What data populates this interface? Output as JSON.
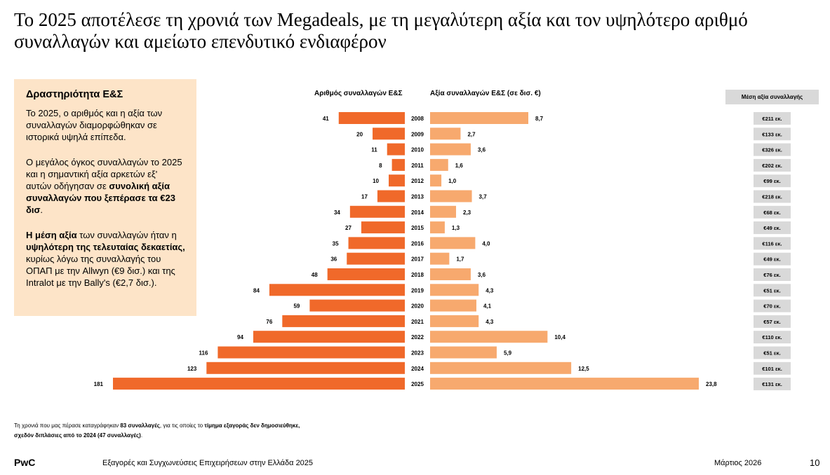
{
  "title": "Το 2025 αποτέλεσε τη χρονιά των Megadeals, με τη μεγαλύτερη αξία και τον υψηλότερο αριθμό συναλλαγών και αμείωτο επενδυτικό ενδιαφέρον",
  "sidebox": {
    "heading": "Δραστηριότητα Ε&Σ",
    "p1": "Το 2025, ο αριθμός και η αξία των συναλλαγών διαμορφώθηκαν σε ιστορικά υψηλά επίπεδα.",
    "p2_a": "Ο μεγάλος όγκος συναλλαγών το 2025 και η σημαντική αξία αρκετών εξ' αυτών οδήγησαν σε ",
    "p2_b": "συνολική αξία συναλλαγών που ξεπέρασε τα €23 δισ",
    "p2_c": ".",
    "p3_a": "Η μέση αξία",
    "p3_b": " των συναλλαγών ήταν η ",
    "p3_c": "υψηλότερη της τελευταίας δεκαετίας,",
    "p3_d": " κυρίως λόγω της συναλλαγής του ΟΠΑΠ με την Allwyn (€9 δισ.) και της Intralot με την Bally's (€2,7 δισ.)."
  },
  "footnote": {
    "a": "Τη χρονιά που μας πέρασε καταγράφηκαν ",
    "b": "83 συναλλαγές",
    "c": ", για τις οποίες το ",
    "d": "τίμημα εξαγοράς δεν δημοσιεύθηκε,",
    "e": "σχεδόν διπλάσιες από το 2024 (47 συναλλαγές)",
    "f": "."
  },
  "footer": {
    "brand": "PwC",
    "doc_title": "Εξαγορές και Συγχωνεύσεις Επιχειρήσεων στην Ελλάδα 2025",
    "date": "Μάρτιος 2026",
    "page": "10"
  },
  "chart_data": {
    "type": "bar",
    "orientation": "horizontal-butterfly",
    "categories": [
      "2008",
      "2009",
      "2010",
      "2011",
      "2012",
      "2013",
      "2014",
      "2015",
      "2016",
      "2017",
      "2018",
      "2019",
      "2020",
      "2021",
      "2022",
      "2023",
      "2024",
      "2025"
    ],
    "series": [
      {
        "name": "Αριθμός συναλλαγών Ε&Σ",
        "color": "#f0692a",
        "direction": "left",
        "values": [
          41,
          20,
          11,
          8,
          10,
          17,
          34,
          27,
          35,
          36,
          48,
          84,
          59,
          76,
          94,
          116,
          123,
          181
        ],
        "labels": [
          "41",
          "20",
          "11",
          "8",
          "10",
          "17",
          "34",
          "27",
          "35",
          "36",
          "48",
          "84",
          "59",
          "76",
          "94",
          "116",
          "123",
          "181"
        ]
      },
      {
        "name": "Αξία συναλλαγών Ε&Σ (σε δισ. €)",
        "color": "#f7a96e",
        "direction": "right",
        "values": [
          8.7,
          2.7,
          3.6,
          1.6,
          1.0,
          3.7,
          2.3,
          1.3,
          4.0,
          1.7,
          3.6,
          4.3,
          4.1,
          4.3,
          10.4,
          5.9,
          12.5,
          23.8
        ],
        "labels": [
          "8,7",
          "2,7",
          "3,6",
          "1,6",
          "1,0",
          "3,7",
          "2,3",
          "1,3",
          "4,0",
          "1,7",
          "3,6",
          "4,3",
          "4,1",
          "4,3",
          "10,4",
          "5,9",
          "12,5",
          "23,8"
        ]
      }
    ],
    "avg_column": {
      "title": "Μέση αξία συναλλαγής",
      "color": "#d9d9d9",
      "values": [
        "€211 εκ.",
        "€133 εκ.",
        "€326 εκ.",
        "€202 εκ.",
        "€99 εκ.",
        "€218 εκ.",
        "€68 εκ.",
        "€49 εκ.",
        "€116 εκ.",
        "€49 εκ.",
        "€76 εκ.",
        "€51 εκ.",
        "€70 εκ.",
        "€57 εκ.",
        "€110 εκ.",
        "€51 εκ.",
        "€101 εκ.",
        "€131 εκ."
      ]
    },
    "xlim_left": [
      0,
      181
    ],
    "xlim_right": [
      0,
      23.8
    ],
    "grid": false,
    "legend": "none"
  }
}
